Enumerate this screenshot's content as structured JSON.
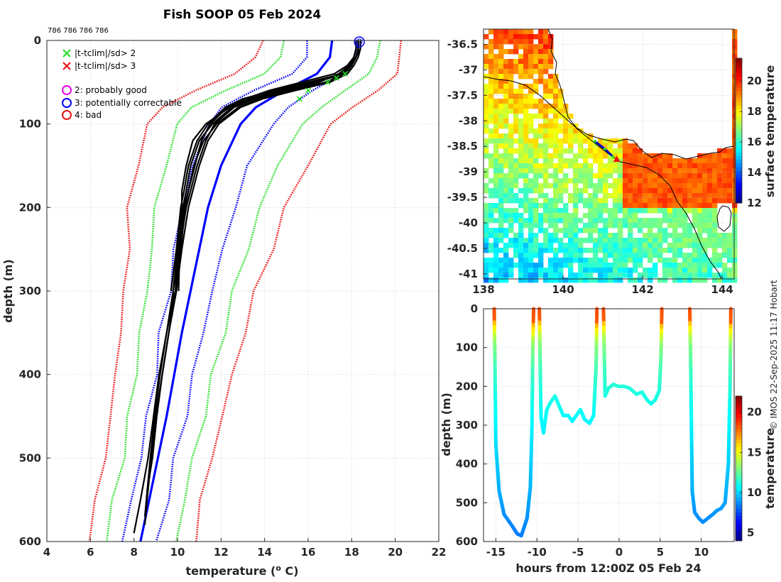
{
  "title": "Fish SOOP 05 Feb 2024",
  "subtitle_ids": "786 786 786 786",
  "credit": "© IMOS 22-Sep-2025 11:17 Hobart",
  "colors": {
    "black": "#000000",
    "blue": "#0000ff",
    "green": "#22dd22",
    "red": "#ee1111",
    "magenta": "#ee00ee"
  },
  "chart_data": [
    {
      "type": "line",
      "name": "profiles",
      "xlabel": "temperature (",
      "xlabel_sup": "o",
      "xlabel_unit": " C)",
      "ylabel": "depth (m)",
      "xlim": [
        4,
        22
      ],
      "ylim": [
        0,
        600
      ],
      "y_reversed": true,
      "xticks": [
        4,
        6,
        8,
        10,
        12,
        14,
        16,
        18,
        20,
        22
      ],
      "yticks": [
        0,
        100,
        200,
        300,
        400,
        500,
        600
      ],
      "grid": true,
      "legend_position": "top-left",
      "legend": [
        {
          "marker": "x",
          "color": "#22dd22",
          "label": "|t-tclim|/sd> 2"
        },
        {
          "marker": "x",
          "color": "#ee1111",
          "label": "|t-tclim|/sd> 3"
        },
        {
          "marker": "o",
          "color": "#ee00ee",
          "label": "2: probably good"
        },
        {
          "marker": "o",
          "color": "#0000ff",
          "label": "3: potentially correctable"
        },
        {
          "marker": "o",
          "color": "#ee1111",
          "label": "4: bad"
        }
      ],
      "climatology": {
        "depth": [
          0,
          20,
          40,
          60,
          80,
          100,
          150,
          200,
          250,
          300,
          350,
          400,
          450,
          500,
          550,
          600
        ],
        "mean": [
          17.1,
          17.0,
          16.4,
          14.9,
          13.6,
          12.9,
          12.0,
          11.4,
          11.0,
          10.6,
          10.2,
          9.85,
          9.5,
          9.1,
          8.7,
          8.3
        ],
        "sd": [
          1.05,
          1.1,
          1.25,
          1.4,
          1.45,
          1.4,
          1.3,
          1.2,
          1.1,
          1.0,
          0.95,
          0.9,
          0.85,
          0.82,
          0.8,
          0.82
        ]
      },
      "profiles": [
        {
          "depth": [
            0,
            10,
            20,
            30,
            40,
            50,
            60,
            70,
            80,
            100,
            120,
            150,
            180,
            200,
            250,
            300,
            350,
            400,
            450,
            500,
            550,
            580
          ],
          "temp": [
            18.3,
            18.3,
            18.2,
            18.0,
            17.6,
            16.4,
            14.6,
            13.3,
            12.4,
            11.3,
            10.7,
            10.4,
            10.2,
            10.2,
            10.05,
            9.9,
            9.6,
            9.3,
            9.0,
            8.8,
            8.6,
            8.5
          ]
        },
        {
          "depth": [
            0,
            10,
            20,
            30,
            40,
            50,
            60,
            70,
            80,
            100,
            120,
            150,
            180,
            200,
            250,
            300,
            350,
            400,
            450,
            500,
            550,
            590
          ],
          "temp": [
            18.2,
            18.2,
            18.1,
            17.8,
            17.2,
            15.7,
            14.2,
            13.1,
            12.3,
            11.5,
            11.1,
            10.8,
            10.5,
            10.35,
            10.15,
            9.9,
            9.5,
            9.15,
            8.9,
            8.65,
            8.3,
            8.0
          ]
        },
        {
          "depth": [
            0,
            10,
            20,
            30,
            40,
            50,
            60,
            70,
            80,
            100,
            120,
            150,
            180,
            200,
            250,
            300,
            350,
            400,
            450,
            500,
            540
          ],
          "temp": [
            18.4,
            18.4,
            18.3,
            18.1,
            17.8,
            17.0,
            15.4,
            13.9,
            12.9,
            11.9,
            11.4,
            11.0,
            10.7,
            10.5,
            10.2,
            9.95,
            9.6,
            9.3,
            9.05,
            8.85,
            8.6
          ]
        },
        {
          "depth": [
            0,
            10,
            20,
            30,
            40,
            50,
            60,
            70,
            80,
            100,
            120,
            150,
            180,
            200,
            250,
            300,
            350,
            400,
            450,
            500,
            570
          ],
          "temp": [
            18.3,
            18.3,
            18.2,
            17.9,
            17.4,
            16.5,
            15.0,
            13.6,
            12.6,
            11.7,
            11.3,
            10.9,
            10.6,
            10.4,
            10.1,
            9.8,
            9.5,
            9.2,
            8.95,
            8.75,
            8.5
          ]
        },
        {
          "depth": [
            0,
            10,
            20,
            30,
            40,
            50,
            60,
            70,
            80,
            100,
            120,
            150,
            180,
            200,
            250,
            300,
            330
          ],
          "temp": [
            18.2,
            18.2,
            18.1,
            17.9,
            17.5,
            16.2,
            14.8,
            13.4,
            12.5,
            11.6,
            11.0,
            10.6,
            10.4,
            10.25,
            10.0,
            9.8,
            9.75
          ]
        },
        {
          "depth": [
            0,
            10,
            20,
            30,
            40,
            50,
            60,
            70,
            80,
            100,
            120,
            150,
            180,
            200,
            250,
            300
          ],
          "temp": [
            18.4,
            18.4,
            18.2,
            18.0,
            17.7,
            16.8,
            15.2,
            13.8,
            12.8,
            11.8,
            11.2,
            10.75,
            10.5,
            10.3,
            10.1,
            10.05
          ]
        },
        {
          "depth": [
            0,
            10,
            20,
            30,
            40,
            50,
            60,
            70,
            80,
            100,
            120,
            150,
            180,
            200,
            250,
            300
          ],
          "temp": [
            18.3,
            18.3,
            18.2,
            18.0,
            17.6,
            16.0,
            14.4,
            13.0,
            12.2,
            11.4,
            10.9,
            10.5,
            10.3,
            10.15,
            9.95,
            9.7
          ]
        }
      ],
      "flagged_points": [
        {
          "depth": 40,
          "temp": 17.7,
          "color": "#22dd22"
        },
        {
          "depth": 50,
          "temp": 16.9,
          "color": "#22dd22"
        },
        {
          "depth": 60,
          "temp": 16.0,
          "color": "#22dd22"
        },
        {
          "depth": 70,
          "temp": 15.6,
          "color": "#22dd22"
        },
        {
          "depth": 45,
          "temp": 17.3,
          "color": "#22dd22"
        }
      ],
      "qc_circle": {
        "depth": 0,
        "temp": 18.35,
        "color": "#0000ff"
      }
    },
    {
      "type": "heatmap",
      "name": "sst_map",
      "xlim": [
        138,
        144.3
      ],
      "ylim": [
        -41.1,
        -36.2
      ],
      "xticks": [
        138,
        140,
        142,
        144
      ],
      "yticks": [
        -36.5,
        -37,
        -37.5,
        -38,
        -38.5,
        -39,
        -39.5,
        -40,
        -40.5,
        -41
      ],
      "ytick_labels": [
        "-36.5",
        "-37",
        "-37.5",
        "-38",
        "-38.5",
        "-39",
        "-39.5",
        "-40",
        "-40.5",
        "-41"
      ],
      "colorbar_label": "surface temperature",
      "colorbar_ticks": [
        12,
        14,
        16,
        18,
        20
      ],
      "colorbar_range": [
        12,
        21.5
      ],
      "track": [
        [
          140.8,
          -38.4
        ],
        [
          141.05,
          -38.55
        ],
        [
          141.25,
          -38.7
        ]
      ],
      "track_end_marker": [
        141.35,
        -38.75
      ]
    },
    {
      "type": "scatter",
      "name": "depth_time",
      "xlabel": "hours from 12:00Z 05 Feb 24",
      "ylabel": "depth (m)",
      "xlim": [
        -16.5,
        14
      ],
      "ylim": [
        0,
        600
      ],
      "y_reversed": true,
      "xticks": [
        -15,
        -10,
        -5,
        0,
        5,
        10
      ],
      "yticks": [
        0,
        100,
        200,
        300,
        400,
        500,
        600
      ],
      "colorbar_label": "temperature",
      "colorbar_ticks": [
        5,
        10,
        15,
        20
      ],
      "colorbar_range": [
        4,
        22
      ],
      "tracks": [
        [
          [
            -15.2,
            0
          ],
          [
            -15.1,
            150
          ],
          [
            -15.0,
            350
          ],
          [
            -14.6,
            470
          ],
          [
            -14.0,
            530
          ],
          [
            -13.5,
            545
          ],
          [
            -13.0,
            560
          ],
          [
            -12.4,
            580
          ],
          [
            -11.9,
            585
          ],
          [
            -11.2,
            540
          ],
          [
            -10.8,
            460
          ],
          [
            -10.6,
            300
          ],
          [
            -10.5,
            100
          ],
          [
            -10.4,
            0
          ]
        ],
        [
          [
            -9.7,
            0
          ],
          [
            -9.6,
            150
          ],
          [
            -9.5,
            280
          ],
          [
            -9.2,
            320
          ],
          [
            -8.8,
            260
          ],
          [
            -8.3,
            240
          ],
          [
            -7.8,
            225
          ],
          [
            -7.3,
            250
          ],
          [
            -6.8,
            275
          ],
          [
            -6.2,
            275
          ],
          [
            -5.7,
            290
          ],
          [
            -5.2,
            275
          ],
          [
            -4.7,
            260
          ],
          [
            -4.2,
            285
          ],
          [
            -3.6,
            295
          ],
          [
            -3.1,
            275
          ],
          [
            -2.8,
            150
          ],
          [
            -2.7,
            0
          ]
        ],
        [
          [
            -1.9,
            0
          ],
          [
            -1.8,
            120
          ],
          [
            -1.7,
            225
          ],
          [
            -1.3,
            205
          ],
          [
            -0.7,
            195
          ],
          [
            -0.1,
            200
          ],
          [
            0.6,
            200
          ],
          [
            1.3,
            205
          ],
          [
            2.1,
            220
          ],
          [
            2.8,
            215
          ],
          [
            3.4,
            235
          ],
          [
            3.9,
            245
          ],
          [
            4.4,
            235
          ],
          [
            4.9,
            210
          ],
          [
            5.1,
            120
          ],
          [
            5.2,
            0
          ]
        ],
        [
          [
            8.6,
            0
          ],
          [
            8.7,
            120
          ],
          [
            8.8,
            300
          ],
          [
            8.9,
            470
          ],
          [
            9.2,
            525
          ],
          [
            9.7,
            540
          ],
          [
            10.2,
            550
          ],
          [
            10.8,
            540
          ],
          [
            11.4,
            530
          ],
          [
            11.9,
            520
          ],
          [
            12.4,
            515
          ],
          [
            12.9,
            500
          ],
          [
            13.3,
            400
          ],
          [
            13.5,
            200
          ],
          [
            13.6,
            0
          ]
        ]
      ]
    }
  ]
}
